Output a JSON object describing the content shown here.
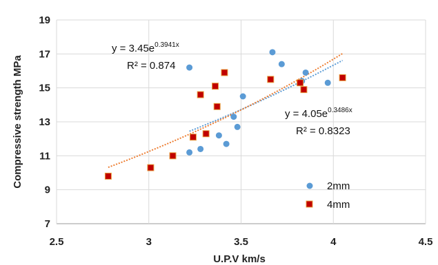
{
  "chart_data": {
    "type": "scatter",
    "title": "",
    "xlabel": "U.P.V km/s",
    "ylabel": "Compressive strength MPa",
    "xlim": [
      2.5,
      4.5
    ],
    "ylim": [
      7,
      19
    ],
    "x_ticks": [
      "2.5",
      "3",
      "3.5",
      "4",
      "4.5"
    ],
    "y_ticks": [
      "7",
      "9",
      "11",
      "13",
      "15",
      "17",
      "19"
    ],
    "grid": true,
    "legend_position": "bottom-right",
    "series": [
      {
        "name": "2mm",
        "marker": "circle",
        "color": "#5b9bd5",
        "trend_color": "#5b9bd5",
        "x": [
          3.22,
          3.22,
          3.28,
          3.38,
          3.42,
          3.46,
          3.48,
          3.51,
          3.67,
          3.72,
          3.83,
          3.85,
          3.97
        ],
        "y": [
          16.2,
          11.2,
          11.4,
          12.2,
          11.7,
          13.3,
          12.7,
          14.5,
          17.1,
          16.4,
          15.4,
          15.9,
          15.3
        ],
        "trendline": {
          "type": "exponential",
          "a": 4.05,
          "b": 0.3486,
          "x_range": [
            3.22,
            4.05
          ],
          "equation_prefix": "y = 4.05e",
          "equation_exponent": "0.3486x",
          "r2_label": "R² = 0.8323"
        }
      },
      {
        "name": "4mm",
        "marker": "square",
        "color": "#c00000",
        "trend_color": "#ed7d31",
        "x": [
          2.78,
          3.01,
          3.13,
          3.24,
          3.28,
          3.31,
          3.36,
          3.37,
          3.41,
          3.66,
          3.82,
          3.84,
          4.05
        ],
        "y": [
          9.8,
          10.3,
          11.0,
          12.1,
          14.6,
          12.3,
          15.1,
          13.9,
          15.9,
          15.5,
          15.3,
          14.9,
          15.6
        ],
        "trendline": {
          "type": "exponential",
          "a": 3.45,
          "b": 0.3941,
          "x_range": [
            2.78,
            4.05
          ],
          "equation_prefix": "y = 3.45e",
          "equation_exponent": "0.3941x",
          "r2_label": "R² = 0.874"
        }
      }
    ]
  }
}
